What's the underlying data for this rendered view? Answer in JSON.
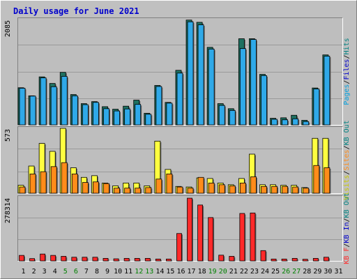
{
  "chart_data": {
    "type": "bar",
    "title": "Daily usage for June 2021",
    "days": [
      "1",
      "2",
      "3",
      "4",
      "5",
      "6",
      "7",
      "8",
      "9",
      "10",
      "11",
      "12",
      "13",
      "14",
      "15",
      "16",
      "17",
      "18",
      "19",
      "20",
      "21",
      "22",
      "23",
      "24",
      "25",
      "26",
      "27",
      "28",
      "29",
      "30",
      "31"
    ],
    "weekend_days": [
      "5",
      "6",
      "12",
      "13",
      "19",
      "20",
      "26",
      "27"
    ],
    "colors": {
      "background": "#c0c0c0",
      "plot": "#bebebe",
      "title": "#0000cc",
      "hits": "#008080",
      "hits_fill": "#1e7060",
      "files": "#2fa9e8",
      "pages": "#00a0e0",
      "visits": "#ffff40",
      "sites": "#ff8c1a",
      "kbytes": "#ff2a2a",
      "weekday_label": "#000000",
      "weekend_label": "#008000"
    },
    "panels": [
      {
        "name": "hits-files-pages",
        "ymax_label": "2085",
        "ymax": 2085,
        "legend": [
          {
            "label": "Pages",
            "color": "#00a0e0"
          },
          {
            "label": "/",
            "color": "#000000"
          },
          {
            "label": "Files",
            "color": "#0000cc"
          },
          {
            "label": "/",
            "color": "#000000"
          },
          {
            "label": "Hits",
            "color": "#008080"
          }
        ],
        "series": [
          {
            "name": "Hits",
            "values": [
              735,
              575,
              950,
              820,
              1040,
              600,
              420,
              460,
              360,
              310,
              370,
              490,
              230,
              780,
              445,
              1080,
              2075,
              2030,
              1535,
              420,
              320,
              1705,
              1705,
              1000,
              130,
              140,
              190,
              90,
              730,
              1385,
              0
            ]
          },
          {
            "name": "Files",
            "values": [
              725,
              570,
              930,
              755,
              960,
              575,
              400,
              445,
              320,
              275,
              315,
              405,
              210,
              760,
              430,
              1025,
              2040,
              1980,
              1500,
              385,
              285,
              1510,
              1690,
              975,
              110,
              100,
              120,
              65,
              710,
              1360,
              0
            ]
          }
        ]
      },
      {
        "name": "visits-sites",
        "ymax_label": "573",
        "ymax": 573,
        "legend": [
          {
            "label": "Visits",
            "color": "#c8c800"
          },
          {
            "label": "/",
            "color": "#000000"
          },
          {
            "label": "Sites",
            "color": "#ff8c1a"
          },
          {
            "label": "/",
            "color": "#000000"
          },
          {
            "label": "KB Out",
            "color": "#008080"
          }
        ],
        "series": [
          {
            "name": "Visits",
            "values": [
              70,
              240,
              440,
              370,
              573,
              225,
              140,
              155,
              90,
              65,
              90,
              90,
              65,
              460,
              210,
              60,
              55,
              135,
              130,
              90,
              75,
              130,
              345,
              75,
              75,
              70,
              70,
              50,
              485,
              485,
              0
            ]
          },
          {
            "name": "Sites",
            "values": [
              55,
              170,
              190,
              235,
              270,
              170,
              95,
              100,
              85,
              45,
              45,
              45,
              50,
              125,
              170,
              55,
              45,
              140,
              90,
              75,
              65,
              90,
              145,
              60,
              60,
              60,
              55,
              45,
              245,
              225,
              0
            ]
          }
        ]
      },
      {
        "name": "kbytes",
        "ymax_label": "278314",
        "ymax": 278314,
        "legend": [
          {
            "label": "KB F",
            "color": "#ff2a2a"
          },
          {
            "label": "/",
            "color": "#000000"
          },
          {
            "label": "KB In",
            "color": "#0000cc"
          },
          {
            "label": "/",
            "color": "#000000"
          },
          {
            "label": "KB Out",
            "color": "#008080"
          }
        ],
        "series": [
          {
            "name": "KBytes",
            "values": [
              24000,
              10000,
              30000,
              24000,
              20000,
              16000,
              16000,
              16000,
              11000,
              9000,
              11000,
              11000,
              11000,
              8000,
              8000,
              120000,
              275000,
              245000,
              190000,
              25000,
              20000,
              208000,
              210000,
              45000,
              8000,
              8000,
              11000,
              7000,
              11000,
              16000,
              0
            ]
          }
        ]
      }
    ]
  }
}
